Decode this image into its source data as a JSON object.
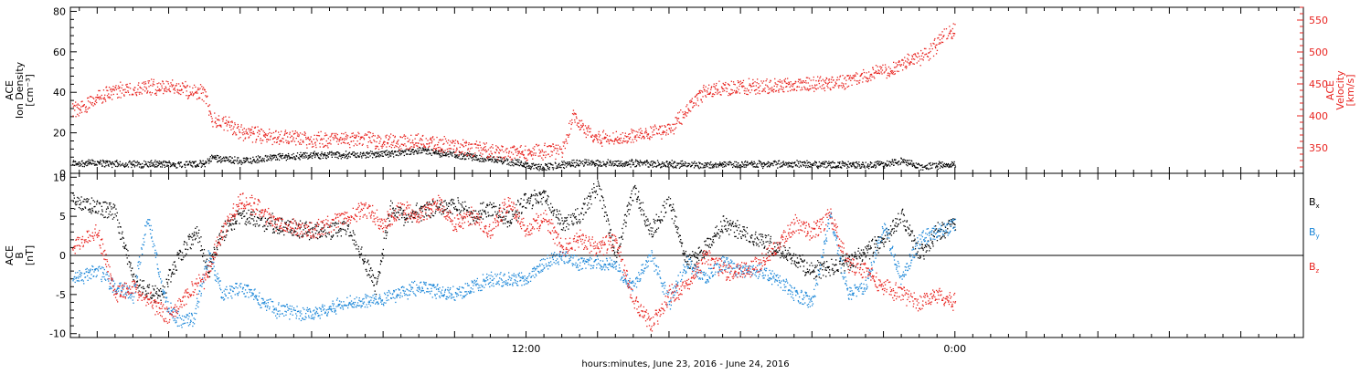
{
  "caption": "hours:minutes, June 23, 2016 - June 24, 2016",
  "colors": {
    "axis": "#000000",
    "red": "#e8231f",
    "blue": "#1a86d8",
    "black": "#000000"
  },
  "chart_data": [
    {
      "type": "scatter",
      "panel": "top",
      "x_unit": "hours since 2016-06-23 00:00",
      "xlim": [
        -0.75,
        33.75
      ],
      "x_ticks": [
        {
          "x": 12,
          "label": "12:00"
        },
        {
          "x": 24,
          "label": "0:00"
        }
      ],
      "left_axis": {
        "label_lines": [
          "ACE",
          "Ion Density",
          "[cm⁻³]"
        ],
        "ylim": [
          0,
          82
        ],
        "ticks": [
          0,
          20,
          40,
          60,
          80
        ],
        "color": "#000000"
      },
      "right_axis": {
        "label_lines": [
          "ACE",
          "Velocity",
          "[km/s]"
        ],
        "ylim": [
          310,
          570
        ],
        "ticks": [
          350,
          400,
          450,
          500,
          550
        ],
        "color": "#e8231f"
      },
      "series": [
        {
          "axis": "left",
          "color": "#000000",
          "x": [
            -0.7,
            0,
            1,
            2,
            3,
            3.2,
            3.5,
            4,
            5,
            6,
            7,
            8,
            9,
            10,
            11,
            11.8,
            12.3,
            13,
            13.5,
            14,
            15,
            16,
            17,
            18,
            19,
            20,
            21,
            22,
            22.5,
            23,
            23.5,
            24
          ],
          "y": [
            5,
            5,
            4.5,
            4.5,
            4.5,
            8,
            7,
            6,
            8,
            9,
            9,
            9.5,
            11,
            9,
            7,
            5,
            3,
            4,
            5,
            5,
            5,
            4.5,
            4,
            4.5,
            4.5,
            4.5,
            4,
            4.5,
            6,
            3,
            4,
            4.5
          ],
          "spread": 2
        },
        {
          "axis": "right",
          "color": "#e8231f",
          "x": [
            -0.7,
            -0.3,
            0,
            0.5,
            1,
            1.5,
            2,
            2.5,
            3,
            3.2,
            3.5,
            4,
            5,
            6,
            7,
            8,
            9,
            10,
            11,
            11.8,
            12.3,
            13,
            13.3,
            13.6,
            14,
            14.5,
            15,
            15.5,
            16,
            16.5,
            17,
            18,
            19,
            20,
            20.5,
            21,
            21.5,
            22,
            22.5,
            23,
            23.3,
            23.6,
            24
          ],
          "y": [
            410,
            418,
            430,
            438,
            442,
            445,
            446,
            440,
            435,
            395,
            390,
            375,
            366,
            362,
            364,
            360,
            360,
            352,
            345,
            342,
            344,
            345,
            400,
            380,
            365,
            365,
            370,
            375,
            378,
            410,
            440,
            445,
            448,
            450,
            452,
            455,
            462,
            470,
            480,
            492,
            500,
            520,
            535
          ],
          "spread": 14
        }
      ]
    },
    {
      "type": "scatter",
      "panel": "bottom",
      "x_unit": "hours since 2016-06-23 00:00",
      "xlim": [
        -0.75,
        33.75
      ],
      "left_axis": {
        "label_lines": [
          "ACE",
          "B",
          "[nT]"
        ],
        "ylim": [
          -10.5,
          10.5
        ],
        "ticks": [
          -10,
          -5,
          0,
          5,
          10
        ],
        "color": "#000000"
      },
      "zero_line": true,
      "series": [
        {
          "name": "Bx",
          "name_main": "B",
          "name_sub": "x",
          "color": "#000000",
          "x": [
            -0.7,
            0,
            0.5,
            1,
            1.3,
            1.8,
            2.3,
            2.8,
            3.1,
            3.5,
            4,
            5,
            6,
            7,
            7.5,
            7.8,
            8.2,
            8.6,
            9,
            9.5,
            10,
            10.5,
            11,
            11.5,
            12,
            12.5,
            13,
            13.5,
            14,
            14.5,
            15,
            15.5,
            16,
            16.5,
            17,
            17.5,
            18,
            18.5,
            19,
            20,
            21,
            22,
            22.5,
            23,
            23.5,
            24
          ],
          "y": [
            7,
            6,
            5.5,
            -3,
            -4.5,
            -5,
            0,
            3,
            -2,
            3,
            5,
            4,
            3,
            3.5,
            -1,
            -4,
            6,
            5,
            5.5,
            6,
            6.5,
            5,
            6,
            4.5,
            7,
            7.5,
            4,
            5,
            9,
            0,
            8.5,
            3,
            7,
            -1,
            1,
            4,
            3,
            2,
            1,
            -2,
            -1,
            2,
            5,
            0,
            3,
            4
          ],
          "spread": 1.3
        },
        {
          "name": "By",
          "name_main": "B",
          "name_sub": "y",
          "color": "#1a86d8",
          "x": [
            -0.7,
            0,
            0.5,
            1,
            1.4,
            1.9,
            2.3,
            2.7,
            3.1,
            3.5,
            4,
            5,
            6,
            7,
            8,
            9,
            10,
            11,
            12,
            12.5,
            13,
            13.5,
            14,
            14.5,
            15,
            15.5,
            16,
            16.5,
            17,
            17.5,
            18,
            18.5,
            19,
            19.5,
            20,
            20.5,
            21,
            21.5,
            22,
            22.5,
            23,
            23.5,
            24
          ],
          "y": [
            -3,
            -2,
            -4,
            -5,
            5,
            -6,
            -8.5,
            -8,
            0,
            -5,
            -4,
            -7,
            -7.5,
            -6,
            -5.5,
            -4,
            -5,
            -3,
            -3,
            -1,
            0,
            -1,
            -1,
            -1.5,
            -4,
            0,
            -6,
            -1,
            -3,
            -1,
            -2,
            -2,
            -3,
            -5,
            -6,
            5,
            -5,
            -4,
            4,
            -3,
            2,
            3,
            4
          ],
          "spread": 1.1
        },
        {
          "name": "Bz",
          "name_main": "B",
          "name_sub": "z",
          "color": "#e8231f",
          "x": [
            -0.7,
            0,
            0.5,
            1,
            1.5,
            2,
            2.5,
            3,
            3.5,
            4,
            4.5,
            5,
            6,
            7,
            7.5,
            8,
            8.5,
            9,
            9.5,
            10,
            10.5,
            11,
            11.5,
            12,
            12.5,
            13,
            13.5,
            14,
            14.5,
            15,
            15.5,
            16,
            16.5,
            17,
            17.5,
            18,
            18.5,
            19,
            19.5,
            20,
            20.5,
            21,
            21.5,
            22,
            22.5,
            23,
            23.5,
            24
          ],
          "y": [
            1,
            3,
            -5,
            -4,
            -6,
            -8,
            -5,
            -3,
            3,
            7,
            6,
            4,
            3,
            5,
            6,
            4,
            6,
            5,
            7,
            4,
            5,
            3,
            7,
            3,
            5,
            1,
            2,
            1,
            2,
            -6,
            -9,
            -5,
            -4,
            0,
            -2,
            -2,
            -1,
            1,
            4,
            3,
            5,
            -1,
            -2,
            -4,
            -5,
            -6,
            -5,
            -6
          ],
          "spread": 1.3
        }
      ]
    }
  ]
}
